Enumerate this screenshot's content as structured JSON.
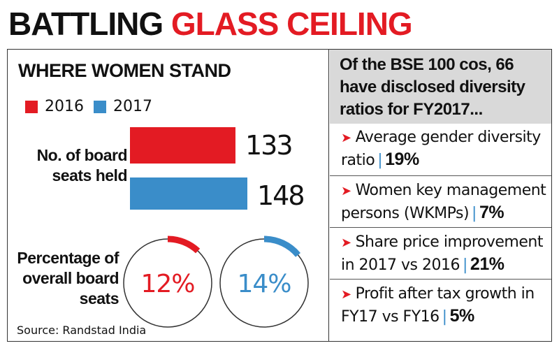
{
  "headline": {
    "part1": "BATTLING",
    "part2": "GLASS CEILING"
  },
  "left": {
    "title": "WHERE WOMEN STAND",
    "row1_label": "No. of board seats held",
    "row2_label": "Percentage of overall board seats"
  },
  "chart_data": [
    {
      "type": "bar",
      "orientation": "horizontal",
      "categories": [
        "2016",
        "2017"
      ],
      "values": [
        133,
        148
      ],
      "value_labels": [
        "133",
        "148"
      ],
      "legend": [
        "2016",
        "2017"
      ],
      "legend_position": "top-left",
      "colors": {
        "2016": "#e31b23",
        "2017": "#3a8dc9"
      },
      "label": "No. of board seats held"
    },
    {
      "type": "pie",
      "style": "ring-arc",
      "categories": [
        "2016",
        "2017"
      ],
      "values": [
        12,
        14
      ],
      "value_labels": [
        "12%",
        "14%"
      ],
      "colors": {
        "2016": "#e31b23",
        "2017": "#3a8dc9"
      },
      "label": "Percentage of overall board seats"
    }
  ],
  "right": {
    "header": "Of the BSE 100 cos, 66 have disclosed diversity ratios for FY2017...",
    "stats": [
      {
        "text": "Average gender diversity ratio",
        "value": "19%"
      },
      {
        "text": "Women key management persons (WKMPs)",
        "value": "7%"
      },
      {
        "text": "Share price improvement in 2017 vs 2016",
        "value": "21%"
      },
      {
        "text": "Profit after tax growth in FY17 vs FY16",
        "value": "5%"
      }
    ]
  },
  "source": "Source: Randstad India",
  "colors": {
    "red": "#e31b23",
    "blue": "#3a8dc9",
    "header_bg": "#d9d9d9"
  },
  "icons": {
    "bullet": "red-chevron-arrow-icon"
  }
}
